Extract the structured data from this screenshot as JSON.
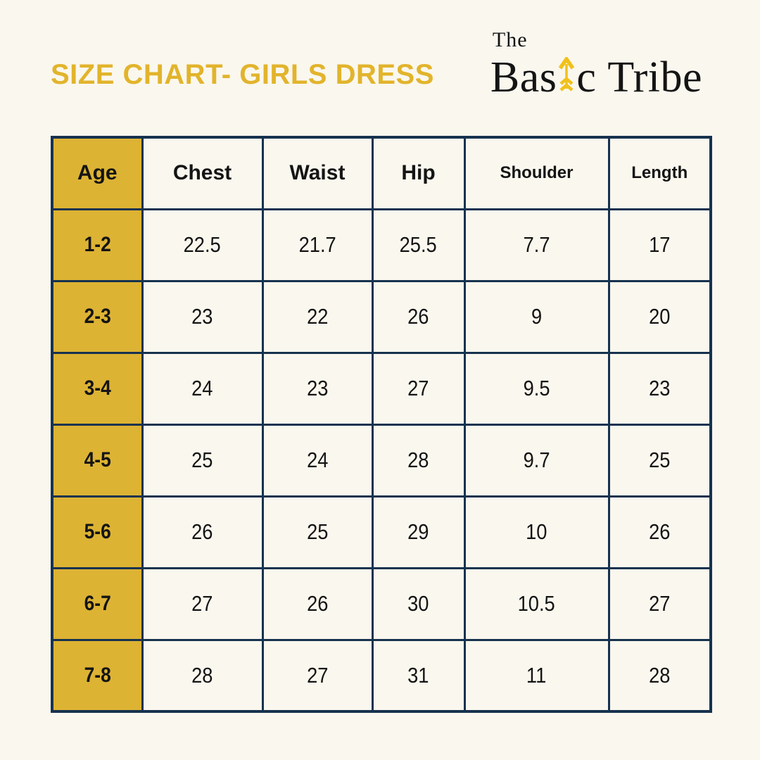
{
  "title": "SIZE CHART- GIRLS DRESS",
  "logo": {
    "line1": "The",
    "word1_prefix": "Bas",
    "word1_suffix": "c",
    "word2": "Tribe",
    "arrow_icon": "up-arrow-icon"
  },
  "colors": {
    "background": "#FAF7EE",
    "accent_gold": "#DDB334",
    "title_gold": "#E2B42C",
    "border_navy": "#16324F",
    "arrow_gold": "#F1C11B",
    "text_dark": "#141414"
  },
  "table": {
    "columns": [
      "Age",
      "Chest",
      "Waist",
      "Hip",
      "Shoulder",
      "Length"
    ],
    "rows": [
      {
        "age": "1-2",
        "values": [
          "22.5",
          "21.7",
          "25.5",
          "7.7",
          "17"
        ]
      },
      {
        "age": "2-3",
        "values": [
          "23",
          "22",
          "26",
          "9",
          "20"
        ]
      },
      {
        "age": "3-4",
        "values": [
          "24",
          "23",
          "27",
          "9.5",
          "23"
        ]
      },
      {
        "age": "4-5",
        "values": [
          "25",
          "24",
          "28",
          "9.7",
          "25"
        ]
      },
      {
        "age": "5-6",
        "values": [
          "26",
          "25",
          "29",
          "10",
          "26"
        ]
      },
      {
        "age": "6-7",
        "values": [
          "27",
          "26",
          "30",
          "10.5",
          "27"
        ]
      },
      {
        "age": "7-8",
        "values": [
          "28",
          "27",
          "31",
          "11",
          "28"
        ]
      }
    ]
  },
  "chart_data": {
    "type": "table",
    "title": "SIZE CHART- GIRLS DRESS",
    "columns": [
      "Age",
      "Chest",
      "Waist",
      "Hip",
      "Shoulder",
      "Length"
    ],
    "rows": [
      [
        "1-2",
        22.5,
        21.7,
        25.5,
        7.7,
        17
      ],
      [
        "2-3",
        23,
        22,
        26,
        9,
        20
      ],
      [
        "3-4",
        24,
        23,
        27,
        9.5,
        23
      ],
      [
        "4-5",
        25,
        24,
        28,
        9.7,
        25
      ],
      [
        "5-6",
        26,
        25,
        29,
        10,
        26
      ],
      [
        "6-7",
        27,
        26,
        30,
        10.5,
        27
      ],
      [
        "7-8",
        28,
        27,
        31,
        11,
        28
      ]
    ]
  }
}
